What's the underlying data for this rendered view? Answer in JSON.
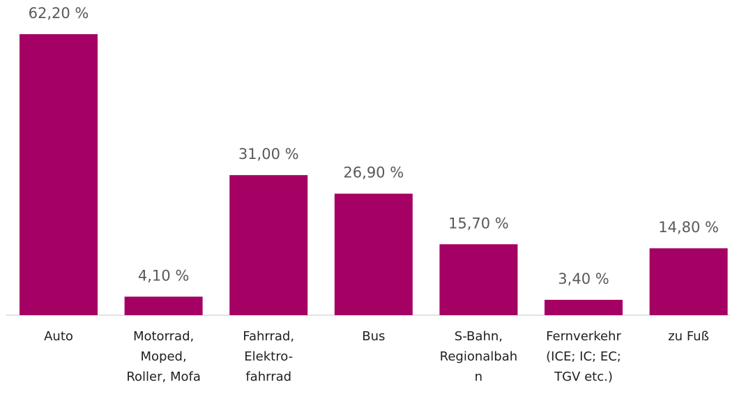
{
  "chart_data": {
    "type": "bar",
    "categories": [
      "Auto",
      "Motorrad, Moped, Roller, Mofa",
      "Fahrrad, Elektro-fahrrad",
      "Bus",
      "S-Bahn, Regionalbahn",
      "Fernverkehr (ICE; IC; EC; TGV etc.)",
      "zu Fuß"
    ],
    "values": [
      62.2,
      4.1,
      31.0,
      26.9,
      15.7,
      3.4,
      14.8
    ],
    "value_labels": [
      "62,20 %",
      "4,10 %",
      "31,00 %",
      "26,90 %",
      "15,70 %",
      "3,40 %",
      "14,80 %"
    ],
    "color": "#a50064"
  }
}
